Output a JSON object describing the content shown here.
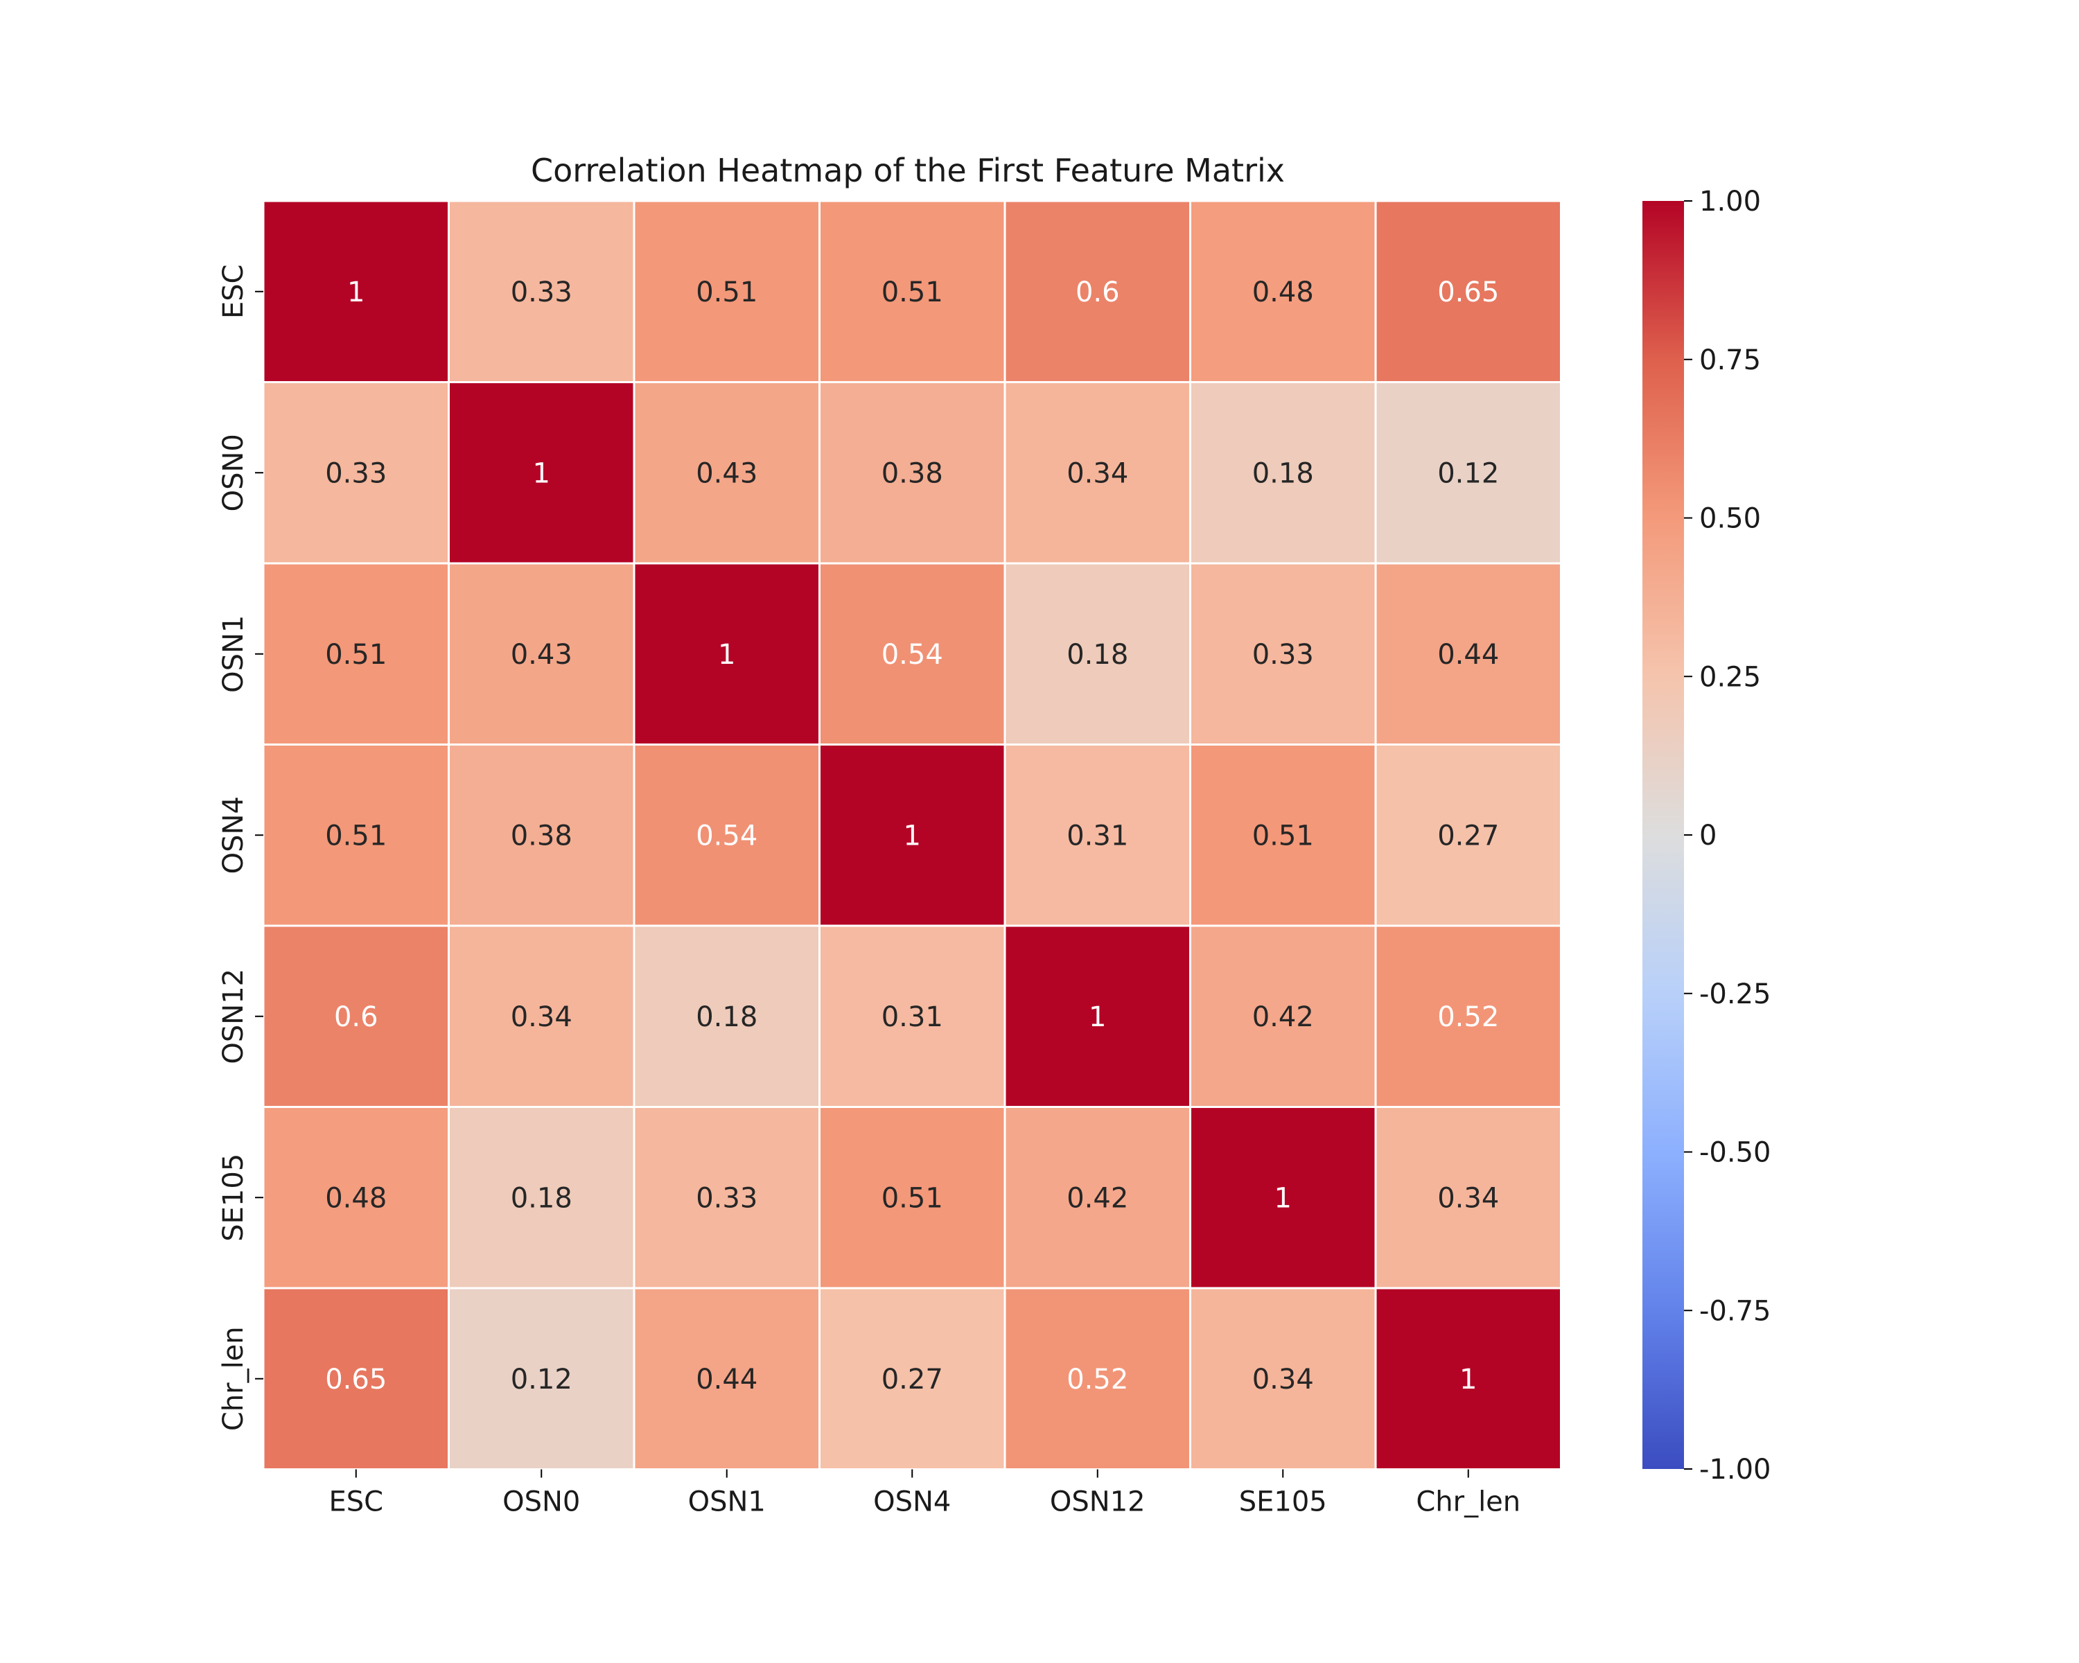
{
  "chart_data": {
    "type": "heatmap",
    "title": "Correlation Heatmap of the First Feature Matrix",
    "xlabel": "",
    "ylabel": "",
    "rows": [
      "ESC",
      "OSN0",
      "OSN1",
      "OSN4",
      "OSN12",
      "SE105",
      "Chr_len"
    ],
    "columns": [
      "ESC",
      "OSN0",
      "OSN1",
      "OSN4",
      "OSN12",
      "SE105",
      "Chr_len"
    ],
    "values": [
      [
        1,
        0.33,
        0.51,
        0.51,
        0.6,
        0.48,
        0.65
      ],
      [
        0.33,
        1,
        0.43,
        0.38,
        0.34,
        0.18,
        0.12
      ],
      [
        0.51,
        0.43,
        1,
        0.54,
        0.18,
        0.33,
        0.44
      ],
      [
        0.51,
        0.38,
        0.54,
        1,
        0.31,
        0.51,
        0.27
      ],
      [
        0.6,
        0.34,
        0.18,
        0.31,
        1,
        0.42,
        0.52
      ],
      [
        0.48,
        0.18,
        0.33,
        0.51,
        0.42,
        1,
        0.34
      ],
      [
        0.65,
        0.12,
        0.44,
        0.27,
        0.52,
        0.34,
        1
      ]
    ],
    "cell_labels": [
      [
        "1",
        "0.33",
        "0.51",
        "0.51",
        "0.6",
        "0.48",
        "0.65"
      ],
      [
        "0.33",
        "1",
        "0.43",
        "0.38",
        "0.34",
        "0.18",
        "0.12"
      ],
      [
        "0.51",
        "0.43",
        "1",
        "0.54",
        "0.18",
        "0.33",
        "0.44"
      ],
      [
        "0.51",
        "0.38",
        "0.54",
        "1",
        "0.31",
        "0.51",
        "0.27"
      ],
      [
        "0.6",
        "0.34",
        "0.18",
        "0.31",
        "1",
        "0.42",
        "0.52"
      ],
      [
        "0.48",
        "0.18",
        "0.33",
        "0.51",
        "0.42",
        "1",
        "0.34"
      ],
      [
        "0.65",
        "0.12",
        "0.44",
        "0.27",
        "0.52",
        "0.34",
        "1"
      ]
    ],
    "colormap": "coolwarm",
    "vmin": -1,
    "vmax": 1,
    "colorbar": {
      "ticks": [
        1,
        0.75,
        0.5,
        0.25,
        0,
        -0.25,
        -0.5,
        -0.75,
        -1
      ],
      "tick_labels": [
        "1.00",
        "0.75",
        "0.50",
        "0.25",
        "0",
        "-0.25",
        "-0.50",
        "-0.75",
        "-1.00"
      ]
    },
    "grid": false,
    "legend": "colorbar-right"
  }
}
